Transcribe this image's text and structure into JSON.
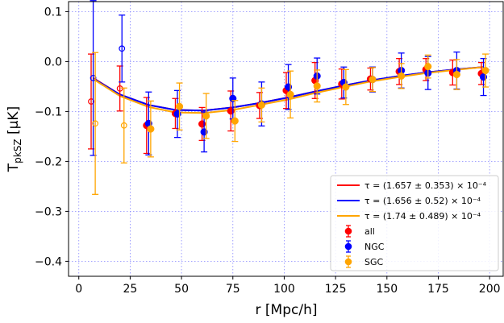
{
  "chart_data": {
    "type": "scatter",
    "xlabel": "r [Mpc/h]",
    "ylabel_main": "T",
    "ylabel_sub": "pkSZ",
    "ylabel_unit": " [μK]",
    "xlim": [
      -5,
      207
    ],
    "ylim": [
      -0.43,
      0.12
    ],
    "xticks": [
      0,
      25,
      50,
      75,
      100,
      125,
      150,
      175,
      200
    ],
    "yticks": [
      0.1,
      0.0,
      -0.1,
      -0.2,
      -0.3,
      -0.4
    ],
    "ytick_labels": [
      "0.1",
      "0.0",
      "−0.1",
      "−0.2",
      "−0.3",
      "−0.4"
    ],
    "grid": true,
    "legend_position": "lower-right",
    "fit_lines": [
      {
        "label": "τ = (1.657 ± 0.353) × 10⁻⁴",
        "color": "#ff0000",
        "x": [
          7,
          20,
          34,
          47,
          61,
          75,
          88,
          102,
          115,
          129,
          142,
          156,
          169,
          183,
          197
        ],
        "y": [
          -0.033,
          -0.066,
          -0.087,
          -0.097,
          -0.098,
          -0.092,
          -0.083,
          -0.072,
          -0.06,
          -0.048,
          -0.038,
          -0.029,
          -0.022,
          -0.016,
          -0.011
        ]
      },
      {
        "label": "τ = (1.656 ± 0.52) × 10⁻⁴",
        "color": "#0000ff",
        "x": [
          7,
          20,
          34,
          47,
          61,
          75,
          88,
          102,
          115,
          129,
          142,
          156,
          169,
          183,
          197
        ],
        "y": [
          -0.034,
          -0.066,
          -0.087,
          -0.097,
          -0.098,
          -0.092,
          -0.083,
          -0.072,
          -0.06,
          -0.048,
          -0.038,
          -0.029,
          -0.022,
          -0.016,
          -0.011
        ]
      },
      {
        "label": "τ = (1.74 ± 0.489) × 10⁻⁴",
        "color": "#ffa500",
        "x": [
          7,
          20,
          34,
          47,
          61,
          75,
          88,
          102,
          115,
          129,
          142,
          156,
          169,
          183,
          197
        ],
        "y": [
          -0.035,
          -0.069,
          -0.091,
          -0.102,
          -0.103,
          -0.097,
          -0.087,
          -0.076,
          -0.063,
          -0.051,
          -0.04,
          -0.031,
          -0.023,
          -0.017,
          -0.011
        ]
      }
    ],
    "series": [
      {
        "name": "all",
        "color": "#ff0000",
        "x": [
          6,
          20,
          33,
          47,
          60,
          74,
          88,
          101,
          115,
          128,
          142,
          156,
          169,
          182,
          196
        ],
        "y": [
          -0.08,
          -0.054,
          -0.128,
          -0.104,
          -0.125,
          -0.099,
          -0.088,
          -0.058,
          -0.038,
          -0.045,
          -0.035,
          -0.02,
          -0.016,
          -0.022,
          -0.024
        ],
        "err": [
          0.095,
          0.045,
          0.056,
          0.03,
          0.033,
          0.04,
          0.026,
          0.036,
          0.036,
          0.03,
          0.022,
          0.026,
          0.022,
          0.025,
          0.022
        ],
        "hollow": [
          true,
          true,
          false,
          false,
          false,
          false,
          false,
          false,
          false,
          false,
          false,
          false,
          false,
          false,
          false
        ]
      },
      {
        "name": "NGC",
        "color": "#0000ff",
        "x": [
          7,
          21,
          34,
          48,
          61,
          75,
          89,
          102,
          116,
          129,
          143,
          157,
          170,
          184,
          197
        ],
        "y": [
          -0.033,
          0.026,
          -0.124,
          -0.105,
          -0.141,
          -0.074,
          -0.085,
          -0.051,
          -0.029,
          -0.042,
          -0.036,
          -0.018,
          -0.023,
          -0.018,
          -0.031
        ],
        "err": [
          0.155,
          0.067,
          0.063,
          0.047,
          0.04,
          0.041,
          0.044,
          0.045,
          0.036,
          0.031,
          0.025,
          0.035,
          0.033,
          0.037,
          0.037
        ],
        "hollow": [
          true,
          true,
          false,
          false,
          false,
          false,
          false,
          false,
          false,
          false,
          false,
          false,
          false,
          false,
          false
        ]
      },
      {
        "name": "SGC",
        "color": "#ffa500",
        "x": [
          8,
          22,
          35,
          49,
          62,
          76,
          89,
          103,
          116,
          130,
          143,
          157,
          170,
          184,
          198
        ],
        "y": [
          -0.124,
          -0.128,
          -0.135,
          -0.09,
          -0.109,
          -0.119,
          -0.087,
          -0.066,
          -0.049,
          -0.051,
          -0.036,
          -0.029,
          -0.01,
          -0.026,
          -0.018
        ],
        "err": [
          0.142,
          0.075,
          0.056,
          0.047,
          0.045,
          0.041,
          0.034,
          0.047,
          0.032,
          0.035,
          0.024,
          0.025,
          0.023,
          0.03,
          0.033
        ],
        "hollow": [
          true,
          true,
          false,
          false,
          false,
          false,
          false,
          false,
          false,
          false,
          false,
          false,
          false,
          false,
          false
        ]
      }
    ]
  }
}
